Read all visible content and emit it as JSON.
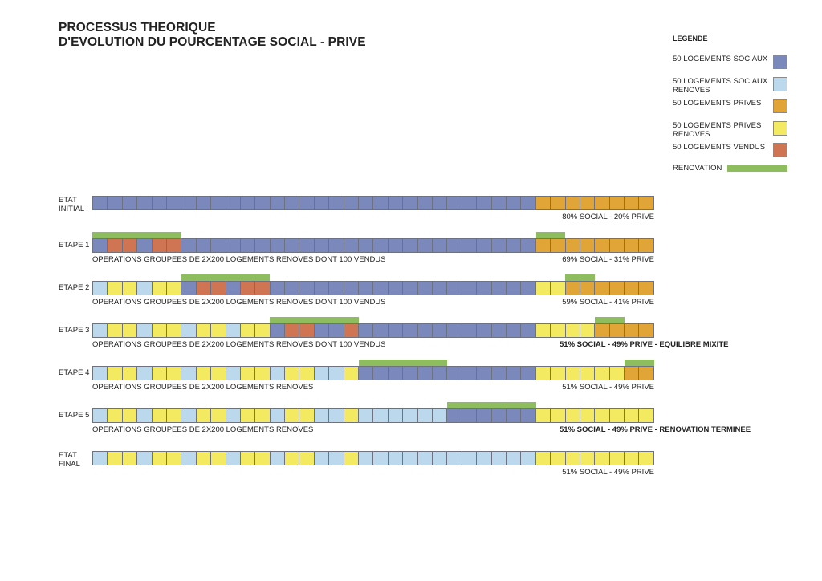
{
  "title": [
    "PROCESSUS THEORIQUE",
    "D'EVOLUTION DU POURCENTAGE SOCIAL - PRIVE"
  ],
  "legend": {
    "title": "LEGENDE",
    "items": [
      {
        "label": "50 LOGEMENTS SOCIAUX",
        "color": "#7a88bb",
        "kind": "swatch"
      },
      {
        "label": "50 LOGEMENTS SOCIAUX RENOVES",
        "color": "#bcd8ec",
        "kind": "swatch"
      },
      {
        "label": "50 LOGEMENTS PRIVES",
        "color": "#e0a437",
        "kind": "swatch"
      },
      {
        "label": "50 LOGEMENTS PRIVES RENOVES",
        "color": "#f3ea62",
        "kind": "swatch"
      },
      {
        "label": "50 LOGEMENTS VENDUS",
        "color": "#cf7553",
        "kind": "swatch"
      },
      {
        "label": "RENOVATION",
        "color": "#8dbd5e",
        "kind": "bar"
      }
    ]
  },
  "colors": {
    "S": "#7a88bb",
    "L": "#bcd8ec",
    "P": "#e0a437",
    "Y": "#f3ea62",
    "V": "#cf7553",
    "R": "#8dbd5e"
  },
  "rows": [
    {
      "label": "ETAT INITIAL",
      "cells": "SSSSSSSSSSSSSSSSSSSSSSSSSSSSSSPPPPPPPP",
      "renovation": [],
      "caption_left": "",
      "caption_right": "80% SOCIAL - 20% PRIVE",
      "caption_right_bold": false
    },
    {
      "label": "ETAPE 1",
      "cells": "SVVSVVSSSSSSSSSSSSSSSSSSSSSSSSPPPPPPPP",
      "renovation": [
        [
          0,
          6
        ],
        [
          30,
          32
        ]
      ],
      "caption_left": "OPERATIONS GROUPEES DE 2X200 LOGEMENTS RENOVES DONT 100 VENDUS",
      "caption_right": "69% SOCIAL - 31% PRIVE",
      "caption_right_bold": false
    },
    {
      "label": "ETAPE 2",
      "cells": "LYYLYYSVVSVVSSSSSSSSSSSSSSSSSSYYPPPPPP",
      "renovation": [
        [
          6,
          12
        ],
        [
          32,
          34
        ]
      ],
      "caption_left": "OPERATIONS GROUPEES DE 2X200 LOGEMENTS RENOVES DONT 100 VENDUS",
      "caption_right": "59% SOCIAL - 41% PRIVE",
      "caption_right_bold": false
    },
    {
      "label": "ETAPE 3",
      "cells": "LYYLYYLYYLYYSVVSSVSSSSSSSSSSSSYYYYPPPP",
      "renovation": [
        [
          12,
          18
        ],
        [
          34,
          36
        ]
      ],
      "caption_left": "OPERATIONS GROUPEES DE 2X200 LOGEMENTS RENOVES DONT 100 VENDUS",
      "caption_right": "51% SOCIAL - 49% PRIVE - EQUILIBRE MIXITE",
      "caption_right_bold": true
    },
    {
      "label": "ETAPE 4",
      "cells": "LYYLYYLYYLYYLYYLLYSSSSSSSSSSSSYYYYYYPP",
      "renovation": [
        [
          18,
          24
        ],
        [
          36,
          38
        ]
      ],
      "caption_left": "OPERATIONS GROUPEES DE 2X200 LOGEMENTS RENOVES",
      "caption_right": "51% SOCIAL - 49% PRIVE",
      "caption_right_bold": false
    },
    {
      "label": "ETAPE 5",
      "cells": "LYYLYYLYYLYYLYYLLYLLLLLLSSSSSSYYYYYYYY",
      "renovation": [
        [
          24,
          30
        ]
      ],
      "caption_left": "OPERATIONS GROUPEES DE 2X200 LOGEMENTS RENOVES",
      "caption_right": "51% SOCIAL - 49% PRIVE - RENOVATION TERMINEE",
      "caption_right_bold": true
    },
    {
      "label": "ETAT FINAL",
      "cells": "LYYLYYLYYLYYLYYLLYLLLLLLLLLLLLYYYYYYYY",
      "renovation": [],
      "caption_left": "",
      "caption_right": "51% SOCIAL - 49% PRIVE",
      "caption_right_bold": false
    }
  ]
}
